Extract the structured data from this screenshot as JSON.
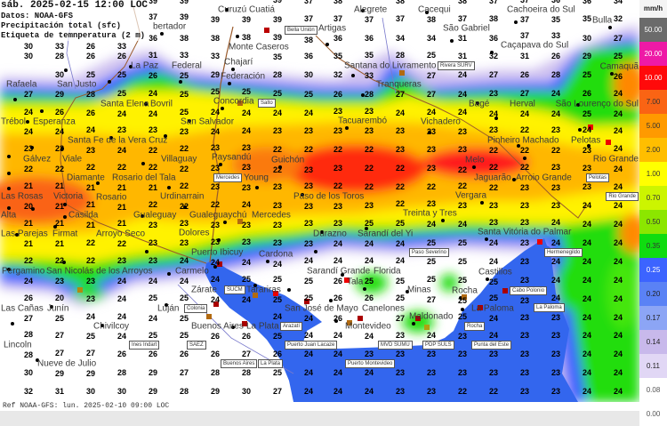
{
  "header": {
    "datetime": "sáb. 2025-02-15 12:00 LOC",
    "source": "Datos: NOAA-GFS",
    "variable": "Precipitación total (sfc)",
    "label_layer": "Etiqueta de temnperatura (2 m)"
  },
  "footer": {
    "reference": "Ref NOAA-GFS: lun. 2025-02-10 09:00 LOC"
  },
  "legend": {
    "unit": "mm/h",
    "items": [
      {
        "value": "50.00",
        "color": "#6b6b6b",
        "text_color": "#ffffff"
      },
      {
        "value": "20.00",
        "color": "#ee1aa6",
        "text_color": "#ffffff"
      },
      {
        "value": "10.00",
        "color": "#ff0a0a",
        "text_color": "#ffffff"
      },
      {
        "value": "7.00",
        "color": "#fa6414",
        "text_color": "#333333"
      },
      {
        "value": "5.00",
        "color": "#ff9a00",
        "text_color": "#333333"
      },
      {
        "value": "2.00",
        "color": "#ffbe00",
        "text_color": "#333333"
      },
      {
        "value": "1.00",
        "color": "#ffff00",
        "text_color": "#333333"
      },
      {
        "value": "0.70",
        "color": "#ccf500",
        "text_color": "#333333"
      },
      {
        "value": "0.50",
        "color": "#8ce600",
        "text_color": "#333333"
      },
      {
        "value": "0.35",
        "color": "#10dc10",
        "text_color": "#333333"
      },
      {
        "value": "0.25",
        "color": "#3c64ff",
        "text_color": "#ffffff"
      },
      {
        "value": "0.20",
        "color": "#5a82f5",
        "text_color": "#222222"
      },
      {
        "value": "0.17",
        "color": "#8ca5f5",
        "text_color": "#222222"
      },
      {
        "value": "0.14",
        "color": "#c8b9eb",
        "text_color": "#222222"
      },
      {
        "value": "0.11",
        "color": "#e1d7f5",
        "text_color": "#222222"
      },
      {
        "value": "0.08",
        "color": "#ffffff",
        "text_color": "#555555"
      },
      {
        "value": "0.00",
        "color": "#ffffff",
        "text_color": "#555555"
      }
    ]
  },
  "temperature_grid": {
    "unit": "°C",
    "rows": [
      [
        null,
        null,
        null,
        null,
        39,
        39,
        null,
        null,
        39,
        37,
        38,
        null,
        38,
        null,
        38,
        37,
        37,
        36,
        36,
        34
      ],
      [
        null,
        null,
        null,
        null,
        37,
        39,
        39,
        39,
        39,
        37,
        37,
        37,
        37,
        38,
        37,
        38,
        37,
        35,
        35,
        32
      ],
      [
        30,
        33,
        26,
        33,
        36,
        38,
        38,
        38,
        39,
        38,
        36,
        36,
        34,
        34,
        31,
        36,
        37,
        33,
        30,
        27
      ],
      [
        30,
        28,
        26,
        26,
        31,
        33,
        33,
        null,
        35,
        36,
        35,
        35,
        28,
        25,
        31,
        32,
        31,
        26,
        29,
        25
      ],
      [
        null,
        30,
        25,
        25,
        26,
        25,
        29,
        null,
        28,
        30,
        32,
        33,
        null,
        27,
        24,
        27,
        26,
        28,
        25,
        26
      ],
      [
        27,
        29,
        28,
        25,
        24,
        25,
        25,
        25,
        25,
        25,
        26,
        28,
        27,
        27,
        24,
        23,
        27,
        24,
        26,
        24
      ],
      [
        24,
        26,
        26,
        24,
        24,
        25,
        24,
        24,
        24,
        24,
        23,
        23,
        24,
        24,
        24,
        24,
        24,
        24,
        25,
        24
      ],
      [
        24,
        24,
        24,
        23,
        23,
        23,
        24,
        24,
        23,
        23,
        23,
        23,
        23,
        23,
        23,
        23,
        22,
        23,
        24,
        24
      ],
      [
        23,
        23,
        23,
        24,
        22,
        22,
        23,
        23,
        22,
        22,
        22,
        22,
        23,
        23,
        23,
        22,
        22,
        22,
        23,
        24
      ],
      [
        22,
        22,
        22,
        22,
        22,
        22,
        23,
        23,
        22,
        23,
        23,
        22,
        22,
        23,
        22,
        22,
        22,
        23,
        23,
        24
      ],
      [
        21,
        21,
        21,
        21,
        21,
        22,
        23,
        23,
        23,
        23,
        22,
        22,
        22,
        22,
        22,
        22,
        23,
        23,
        23,
        24
      ],
      [
        20,
        21,
        21,
        21,
        22,
        22,
        22,
        24,
        23,
        23,
        23,
        23,
        22,
        23,
        23,
        23,
        23,
        23,
        24,
        24
      ],
      [
        21,
        21,
        21,
        21,
        23,
        23,
        23,
        23,
        23,
        23,
        23,
        25,
        25,
        24,
        24,
        23,
        23,
        24,
        24,
        24
      ],
      [
        21,
        21,
        22,
        22,
        23,
        23,
        23,
        23,
        23,
        23,
        24,
        24,
        24,
        25,
        25,
        24,
        23,
        24,
        24,
        24
      ],
      [
        22,
        22,
        22,
        23,
        23,
        24,
        24,
        24,
        24,
        24,
        24,
        24,
        24,
        25,
        25,
        24,
        23,
        24,
        24,
        24
      ],
      [
        24,
        23,
        23,
        24,
        24,
        24,
        24,
        25,
        25,
        25,
        26,
        25,
        25,
        25,
        25,
        25,
        23,
        24,
        24,
        24
      ],
      [
        26,
        20,
        23,
        24,
        25,
        25,
        24,
        24,
        25,
        25,
        26,
        26,
        25,
        27,
        25,
        25,
        23,
        24,
        24,
        24
      ],
      [
        27,
        25,
        24,
        24,
        24,
        25,
        null,
        null,
        24,
        24,
        26,
        null,
        27,
        null,
        25,
        24,
        23,
        23,
        24,
        24
      ],
      [
        28,
        27,
        25,
        24,
        25,
        25,
        26,
        26,
        25,
        24,
        24,
        24,
        23,
        24,
        23,
        24,
        23,
        23,
        24,
        24
      ],
      [
        28,
        27,
        27,
        26,
        26,
        26,
        26,
        27,
        26,
        24,
        24,
        23,
        23,
        23,
        23,
        23,
        23,
        23,
        24,
        24
      ],
      [
        30,
        29,
        29,
        28,
        29,
        27,
        28,
        28,
        25,
        24,
        24,
        24,
        23,
        23,
        23,
        23,
        23,
        23,
        24,
        24
      ],
      [
        32,
        31,
        30,
        30,
        29,
        28,
        29,
        30,
        27,
        24,
        24,
        24,
        23,
        23,
        22,
        22,
        23,
        23,
        24,
        24
      ]
    ]
  },
  "cities": [
    "Curuzú Cuatiá",
    "Alegrete",
    "Cacequi",
    "Cachoeira do Sul",
    "Bulla",
    "Monte Caseros",
    "Artigas",
    "São Gabriel",
    "Caçapava do Sul",
    "bertador",
    "San Justo",
    "La Paz",
    "Chajarí",
    "Santa Elena",
    "Federal",
    "Federación",
    "Camaquã",
    "Rafaela",
    "Bovril",
    "Concordia",
    "Santana do Livramento",
    "Tranqueras",
    "Esperanza",
    "Santa Fe de la Vera Cruz",
    "San Salvador",
    "Bagé",
    "São Lourenço do Sul",
    "Pinheiro Machado",
    "Villaguay",
    "Viale",
    "Tacuarembó",
    "Vichadero",
    "Pelotas",
    "Gálvez",
    "Diamante",
    "Trébol",
    "Herval",
    "Rio Grande",
    "Rosario del Tala",
    "Paysandú",
    "Guichón",
    "Melo",
    "Arroio Grande",
    "Las Rosas",
    "Victoria",
    "Urdinarrain",
    "Young",
    "Paso de los Toros",
    "Jaguarão",
    "Las Parejas",
    "Vergara",
    "Alta",
    "Casilda",
    "Rosario",
    "Gualeguaychú",
    "Arroyo Seco",
    "Gualeguay",
    "Mercedes",
    "Treinta y Tres",
    "San Nicolás de los Arroyos",
    "Durazno",
    "Sarandí del Yi",
    "Firmat",
    "Dolores",
    "Santa Vitória do Palmar",
    "Sarandí Grande",
    "Puerto Ibicuy",
    "Pergamino",
    "Cardona",
    "Las Cañas",
    "Carmelo",
    "Zárate",
    "Florida",
    "Tarariras",
    "San José de Mayo",
    "Castillos",
    "Minas",
    "Tala",
    "Canelones",
    "Rocha",
    "Junín",
    "Luján",
    "Buenos Aires",
    "La Paloma",
    "Lincoln",
    "Chivilcoy",
    "Montevideo",
    "La Plata",
    "Maldonado",
    "Nueve de Julio"
  ],
  "stations": [
    "Bella Unión",
    "Salto",
    "Rivera SURV",
    "Pelotas",
    "Rio Grande",
    "Mercedes",
    "Hermenegildo",
    "SUCM",
    "Paso Severino",
    "Ines Indart",
    "Colonia",
    "Puerto Juan Lacaze",
    "Arazatí",
    "Buenos Aires",
    "Cabo Polonio",
    "Rocha",
    "La Paloma",
    "MVD SUMU",
    "Puerto Montevideo",
    "PDP SULS",
    "Punta del Este",
    "SAEZ",
    "La Plata"
  ],
  "colors": {
    "ocean": "#3366ee",
    "borders": "#9a5a2a",
    "rivers": "#7a7acc"
  }
}
